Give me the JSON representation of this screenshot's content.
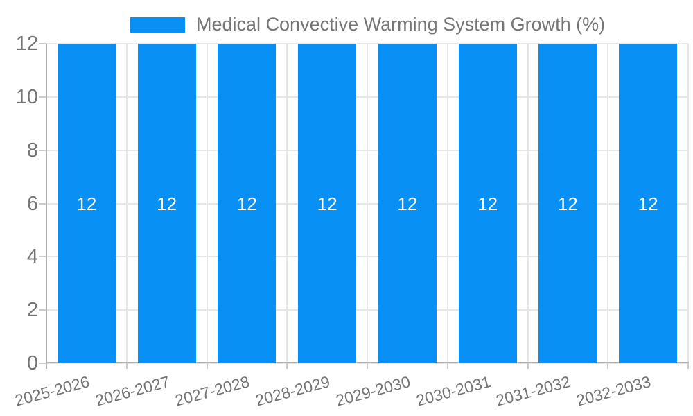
{
  "chart_data": {
    "type": "bar",
    "title": "Medical Convective Warming System Growth (%)",
    "legend_position": "top",
    "categories": [
      "2025-2026",
      "2026-2027",
      "2027-2028",
      "2028-2029",
      "2029-2030",
      "2030-2031",
      "2031-2032",
      "2032-2033"
    ],
    "series": [
      {
        "name": "Medical Convective Warming System Growth (%)",
        "values": [
          12,
          12,
          12,
          12,
          12,
          12,
          12,
          12
        ]
      }
    ],
    "bar_value_labels": [
      "12",
      "12",
      "12",
      "12",
      "12",
      "12",
      "12",
      "12"
    ],
    "yticks": [
      0,
      2,
      4,
      6,
      8,
      10,
      12
    ],
    "ylim": [
      0,
      12
    ],
    "xlabel": "",
    "ylabel": "",
    "grid": true
  },
  "colors": {
    "bar": "#0990f4",
    "axis_text": "#757575",
    "bar_label_text": "#ffffff",
    "gridline": "#e6e6e6",
    "axis_line": "#b1b1b1",
    "tick": "#cbcbcb",
    "background": "#ffffff"
  }
}
